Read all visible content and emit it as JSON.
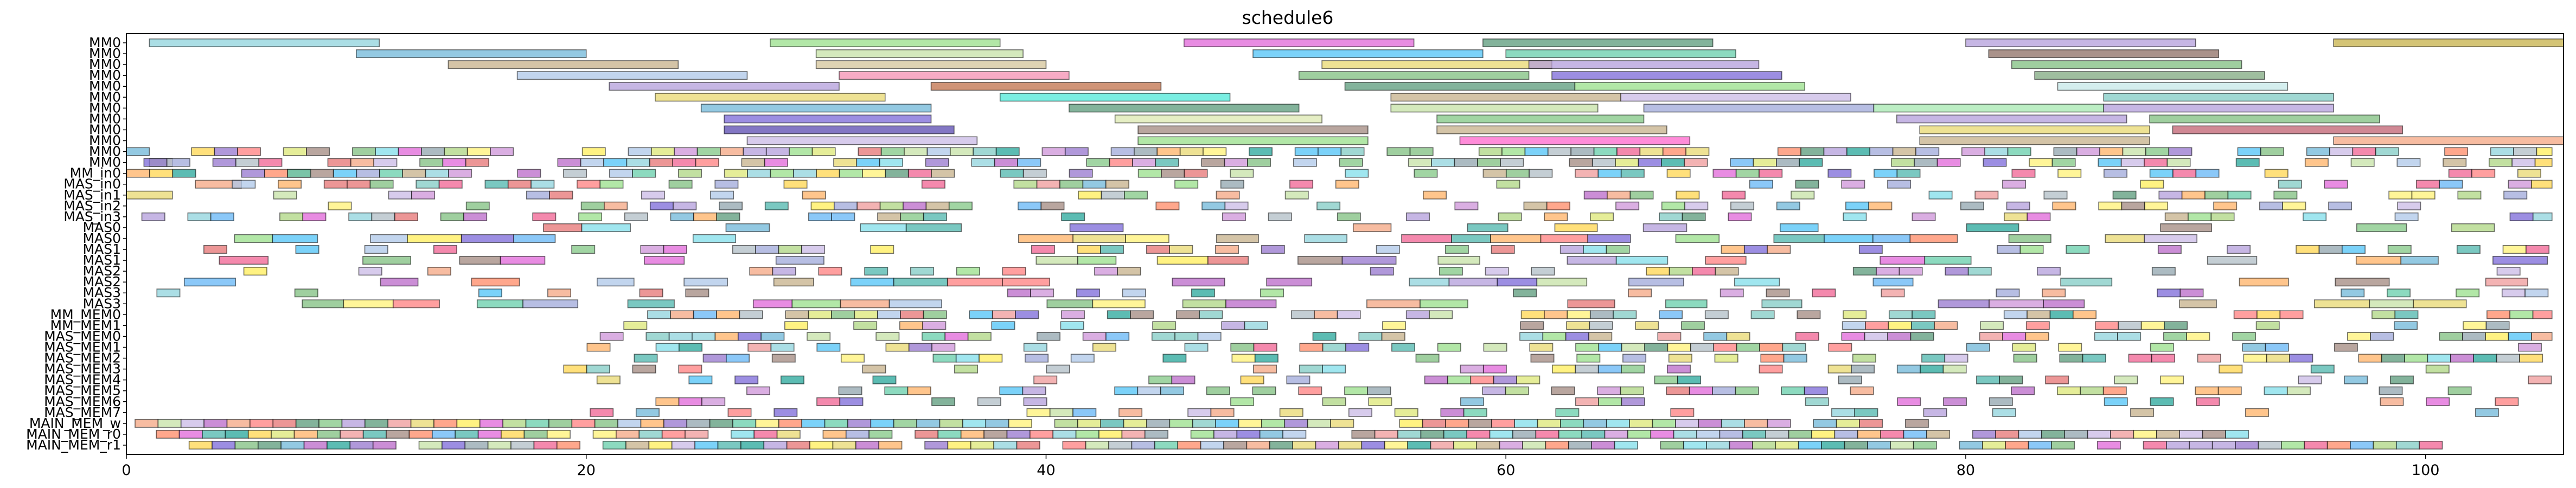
{
  "chart_data": {
    "type": "gantt",
    "title": "schedule6",
    "xlabel": "",
    "ylabel": "",
    "xlim": [
      0,
      106
    ],
    "xticks": [
      0,
      20,
      40,
      60,
      80,
      100
    ],
    "grid": false,
    "rows": [
      "MM0",
      "MM0",
      "MM0",
      "MM0",
      "MM0",
      "MM0",
      "MM0",
      "MM0",
      "MM0",
      "MM0",
      "MM0",
      "MM0",
      "MM_in0",
      "MAS_in0",
      "MAS_in1",
      "MAS_in2",
      "MAS_in3",
      "MAS0",
      "MAS0",
      "MAS1",
      "MAS1",
      "MAS2",
      "MAS2",
      "MAS3",
      "MAS3",
      "MM_MEM0",
      "MM_MEM1",
      "MAS_MEM0",
      "MAS_MEM1",
      "MAS_MEM2",
      "MAS_MEM3",
      "MAS_MEM4",
      "MAS_MEM5",
      "MAS_MEM6",
      "MAS_MEM7",
      "MAIN_MEM_w",
      "MAIN_MEM_r0",
      "MAIN_MEM_r1"
    ],
    "palette": [
      "#8fd3dc",
      "#e066d8",
      "#6fb7d8",
      "#aec7e8",
      "#98df8a",
      "#5a9a7a",
      "#c9b9e6",
      "#c5b08a",
      "#e8d870",
      "#7b68d8",
      "#ff7f7f",
      "#ffb266",
      "#66cdaa",
      "#f4a582",
      "#7fbf7f",
      "#b39ddb",
      "#80deea",
      "#dce775",
      "#a1887f",
      "#90a4ae",
      "#f06292",
      "#4db6ac",
      "#ffd54f",
      "#9575cd",
      "#4fc3f7",
      "#aed581",
      "#ff8a65",
      "#ba68c8",
      "#64b5f6",
      "#81c784",
      "#e57373",
      "#ffee58",
      "#26a69a",
      "#ef9a9a",
      "#c5e1a5",
      "#b0bec5",
      "#ce93d8",
      "#80cbc4",
      "#fff176",
      "#9fa8da"
    ],
    "tasks": [
      {
        "row": 0,
        "start": 1,
        "end": 11,
        "color": "#8fd3dc"
      },
      {
        "row": 0,
        "start": 28,
        "end": 38,
        "color": "#98df8a"
      },
      {
        "row": 0,
        "start": 46,
        "end": 56,
        "color": "#e066d8"
      },
      {
        "row": 0,
        "start": 59,
        "end": 69,
        "color": "#5a9a7a"
      },
      {
        "row": 0,
        "start": 80,
        "end": 90,
        "color": "#b39ddb"
      },
      {
        "row": 0,
        "start": 96,
        "end": 106,
        "color": "#c5b048"
      },
      {
        "row": 1,
        "start": 10,
        "end": 20,
        "color": "#6fb7d8"
      },
      {
        "row": 1,
        "start": 30,
        "end": 39,
        "color": "#c5e1a5"
      },
      {
        "row": 1,
        "start": 49,
        "end": 59,
        "color": "#4fc3f7"
      },
      {
        "row": 1,
        "start": 60,
        "end": 70,
        "color": "#66cdaa"
      },
      {
        "row": 1,
        "start": 81,
        "end": 91,
        "color": "#8d6e63"
      },
      {
        "row": 2,
        "start": 14,
        "end": 24,
        "color": "#c5b08a"
      },
      {
        "row": 2,
        "start": 30,
        "end": 40,
        "color": "#d4c49a"
      },
      {
        "row": 2,
        "start": 52,
        "end": 62,
        "color": "#e8d870"
      },
      {
        "row": 2,
        "start": 61,
        "end": 71,
        "color": "#b39ddb"
      },
      {
        "row": 2,
        "start": 82,
        "end": 92,
        "color": "#7fbf7f"
      },
      {
        "row": 3,
        "start": 17,
        "end": 27,
        "color": "#aec7e8"
      },
      {
        "row": 3,
        "start": 31,
        "end": 41,
        "color": "#f48fb1"
      },
      {
        "row": 3,
        "start": 51,
        "end": 61,
        "color": "#7fbf7f"
      },
      {
        "row": 3,
        "start": 62,
        "end": 72,
        "color": "#7b68d8"
      },
      {
        "row": 3,
        "start": 83,
        "end": 93,
        "color": "#7fa87f"
      },
      {
        "row": 4,
        "start": 21,
        "end": 31,
        "color": "#b39ddb"
      },
      {
        "row": 4,
        "start": 35,
        "end": 45,
        "color": "#c0704a"
      },
      {
        "row": 4,
        "start": 53,
        "end": 63,
        "color": "#5a9a7a"
      },
      {
        "row": 4,
        "start": 63,
        "end": 73,
        "color": "#98df8a"
      },
      {
        "row": 4,
        "start": 84,
        "end": 94,
        "color": "#c5e8e8"
      },
      {
        "row": 5,
        "start": 23,
        "end": 33,
        "color": "#e8d870"
      },
      {
        "row": 5,
        "start": 38,
        "end": 48,
        "color": "#4de8d8"
      },
      {
        "row": 5,
        "start": 55,
        "end": 65,
        "color": "#c5b08a"
      },
      {
        "row": 5,
        "start": 65,
        "end": 75,
        "color": "#c9b9e6"
      },
      {
        "row": 5,
        "start": 86,
        "end": 96,
        "color": "#80cbc4"
      },
      {
        "row": 6,
        "start": 25,
        "end": 35,
        "color": "#6fb7d8"
      },
      {
        "row": 6,
        "start": 41,
        "end": 51,
        "color": "#5a9a7a"
      },
      {
        "row": 6,
        "start": 55,
        "end": 64,
        "color": "#c5e1a5"
      },
      {
        "row": 6,
        "start": 66,
        "end": 76,
        "color": "#9fa8da"
      },
      {
        "row": 6,
        "start": 76,
        "end": 86,
        "color": "#a5e8b0"
      },
      {
        "row": 6,
        "start": 86,
        "end": 96,
        "color": "#b39ddb"
      },
      {
        "row": 7,
        "start": 26,
        "end": 35,
        "color": "#7b68d8"
      },
      {
        "row": 7,
        "start": 43,
        "end": 52,
        "color": "#dce8b0"
      },
      {
        "row": 7,
        "start": 57,
        "end": 66,
        "color": "#81c784"
      },
      {
        "row": 7,
        "start": 77,
        "end": 87,
        "color": "#b39ddb"
      },
      {
        "row": 7,
        "start": 88,
        "end": 98,
        "color": "#7fbf7f"
      },
      {
        "row": 8,
        "start": 26,
        "end": 36,
        "color": "#5a4ab0"
      },
      {
        "row": 8,
        "start": 44,
        "end": 54,
        "color": "#a1887f"
      },
      {
        "row": 8,
        "start": 57,
        "end": 67,
        "color": "#c5b08a"
      },
      {
        "row": 8,
        "start": 78,
        "end": 88,
        "color": "#e8d870"
      },
      {
        "row": 8,
        "start": 89,
        "end": 99,
        "color": "#c06070"
      },
      {
        "row": 9,
        "start": 27,
        "end": 37,
        "color": "#c9b9e6"
      },
      {
        "row": 9,
        "start": 44,
        "end": 54,
        "color": "#98df8a"
      },
      {
        "row": 9,
        "start": 58,
        "end": 68,
        "color": "#ff66cc"
      },
      {
        "row": 9,
        "start": 78,
        "end": 88,
        "color": "#c5b08a"
      },
      {
        "row": 9,
        "start": 96,
        "end": 106,
        "color": "#f4a582"
      },
      {
        "row": 10,
        "start": 0,
        "end": 1,
        "color": "#6fb7d8"
      },
      {
        "row": 11,
        "start": 1,
        "end": 2,
        "color": "#fff176"
      },
      {
        "row": 12,
        "start": 7,
        "end": 9,
        "color": "#a1887f"
      },
      {
        "row": 13,
        "start": 3,
        "end": 5,
        "color": "#f4a582"
      },
      {
        "row": 14,
        "start": 0,
        "end": 2,
        "color": "#e8d870"
      }
    ]
  }
}
